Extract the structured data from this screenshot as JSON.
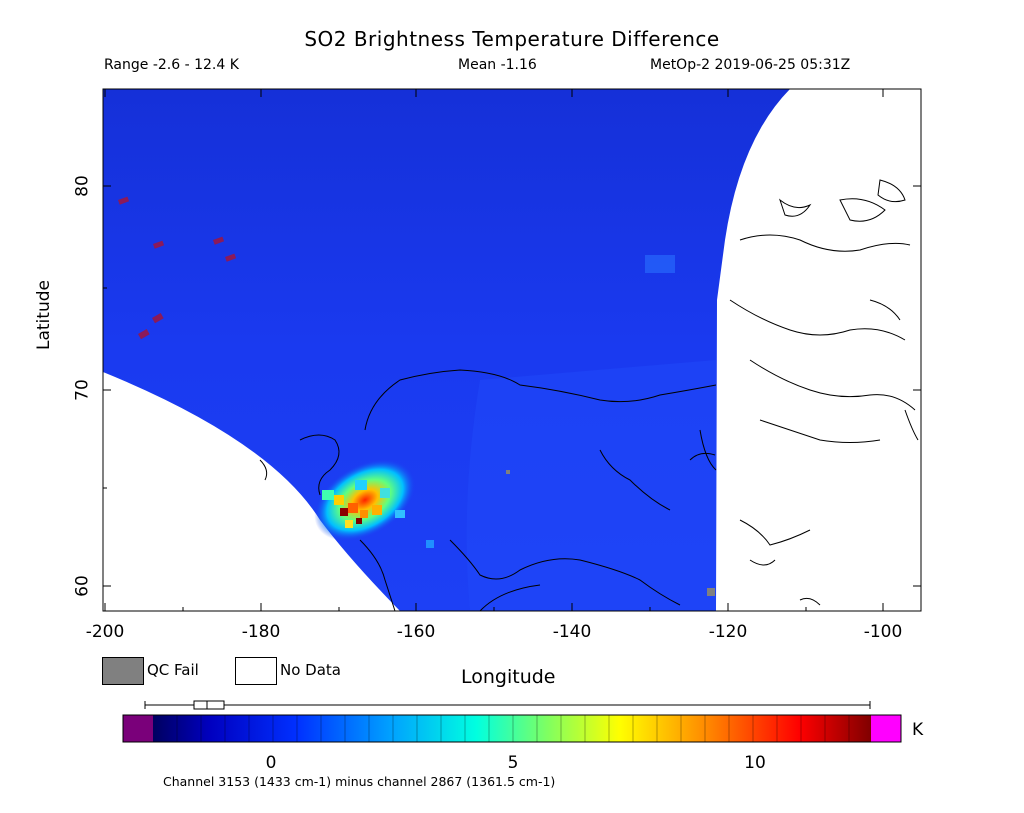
{
  "header": {
    "title": "SO2 Brightness Temperature Difference",
    "range": "Range -2.6 - 12.4 K",
    "mean": "Mean -1.16",
    "meta": "MetOp-2 2019-06-25 05:31Z"
  },
  "axes": {
    "xlabel": "Longitude",
    "ylabel": "Latitude",
    "xticks": [
      "-200",
      "-180",
      "-160",
      "-140",
      "-120",
      "-100"
    ],
    "yticks": [
      "80",
      "70",
      "60"
    ]
  },
  "legend": {
    "qc_fail": "QC Fail",
    "no_data": "No Data"
  },
  "colorbar": {
    "ticks": [
      "0",
      "5",
      "10"
    ],
    "unit": "K",
    "footnote": "Channel 3153 (1433 cm-1) minus channel 2867 (1361.5 cm-1)",
    "under_color": "#7a007a",
    "over_color": "#ff00ff"
  },
  "colors": {
    "background_field": "#1a2ee6",
    "qc_fail": "#808080",
    "coastline": "#000000"
  }
}
